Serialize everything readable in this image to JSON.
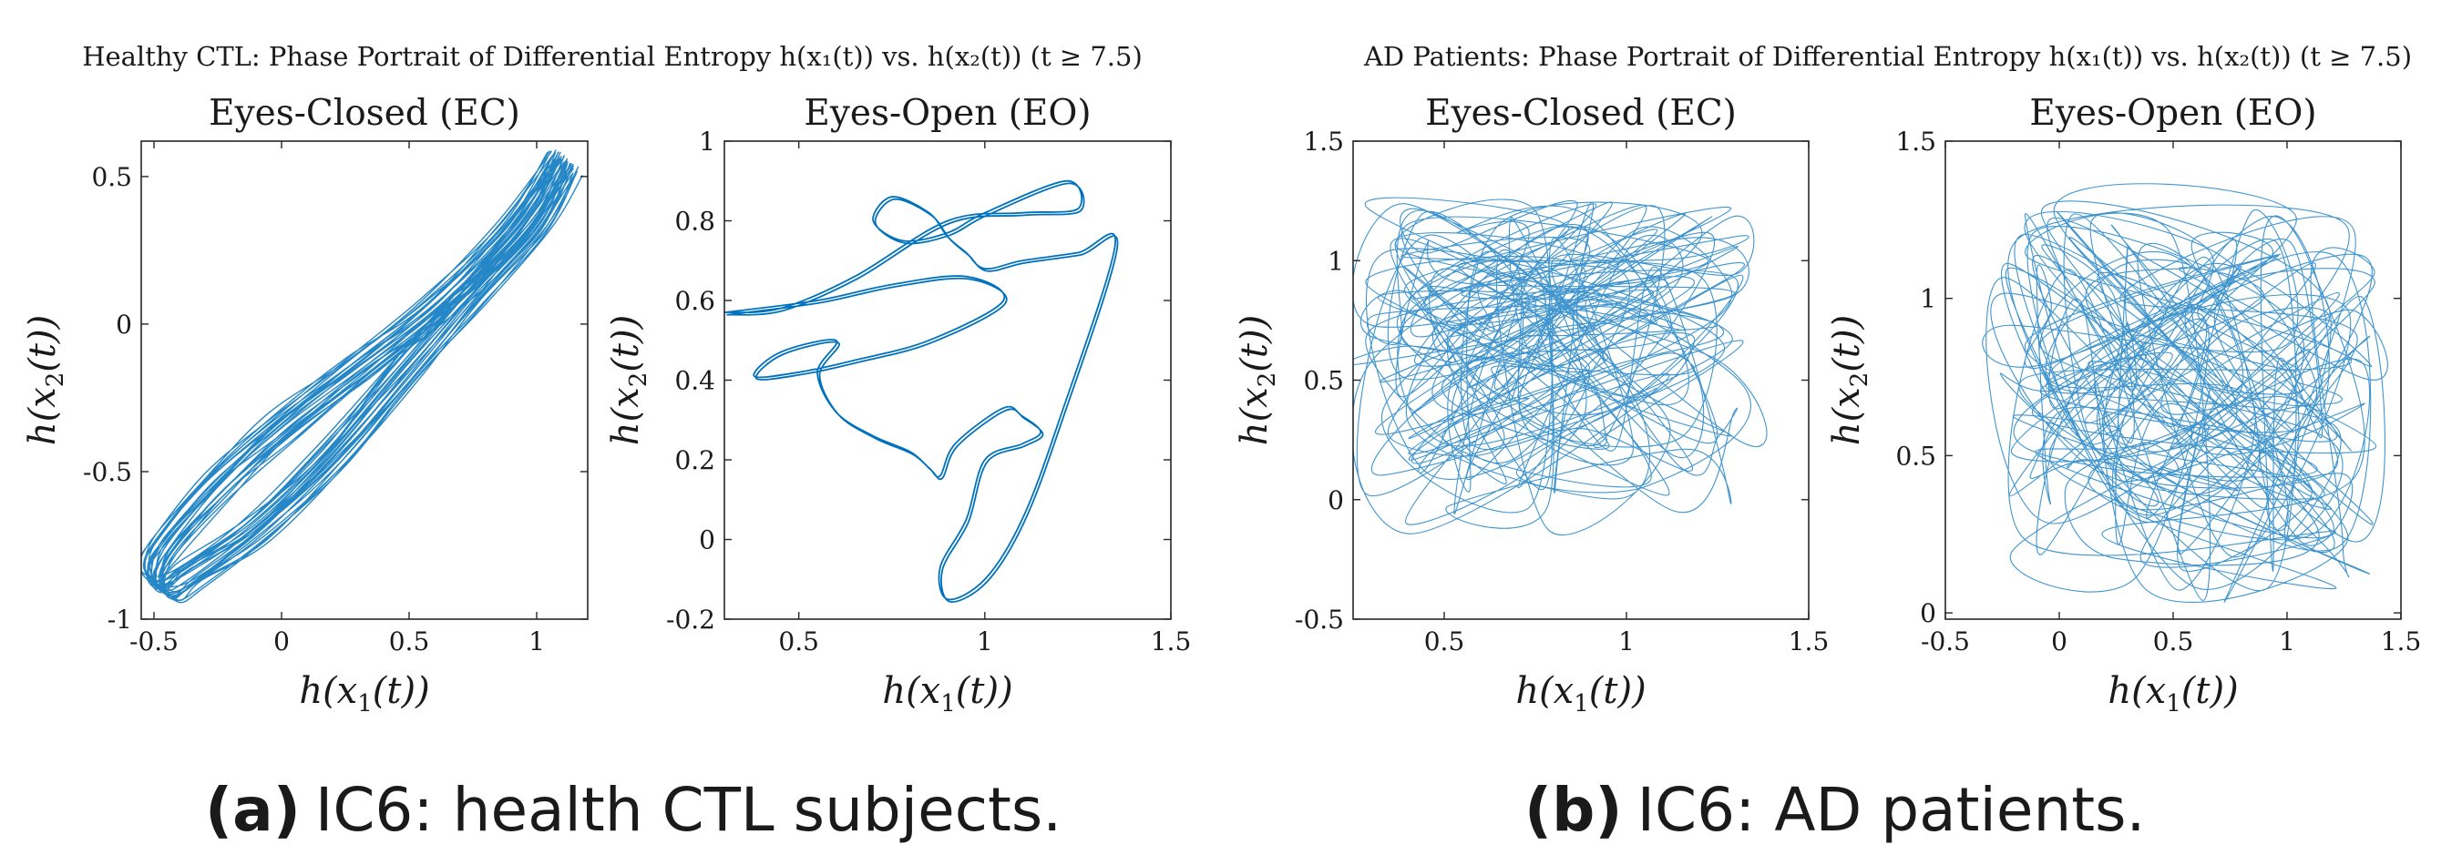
{
  "figure": {
    "suptitle_left": "Healthy CTL: Phase Portrait of Differential Entropy h(x₁(t)) vs. h(x₂(t)) (t ≥ 7.5)",
    "suptitle_right": "AD Patients: Phase Portrait of Differential Entropy h(x₁(t)) vs. h(x₂(t)) (t ≥ 7.5)",
    "caption_a_letter": "(a)",
    "caption_a_text": "IC6: health CTL subjects.",
    "caption_b_letter": "(b)",
    "caption_b_text": "IC6: AD patients.",
    "line_color": "#0072BD"
  },
  "chart_data": [
    {
      "type": "line",
      "group": "Healthy CTL",
      "title": "Eyes-Closed (EC)",
      "xlabel": "h(x₁(t))",
      "ylabel": "h(x₂(t))",
      "xlim": [
        -0.55,
        1.2
      ],
      "ylim": [
        -1.0,
        0.62
      ],
      "xticks": [
        -0.5,
        0,
        0.5,
        1
      ],
      "xtick_labels": [
        "-0.5",
        "0",
        "0.5",
        "1"
      ],
      "yticks": [
        -1,
        -0.5,
        0,
        0.5
      ],
      "ytick_labels": [
        "-1",
        "-0.5",
        "0",
        "0.5"
      ],
      "pattern": "ellipse",
      "series": [
        {
          "name": "phase trajectory",
          "x": [
            1.1,
            0.9,
            0.6,
            0.3,
            0.0,
            -0.25,
            -0.45,
            -0.5,
            -0.45,
            -0.35,
            -0.1,
            0.2,
            0.5,
            0.75,
            1.0,
            1.12
          ],
          "y": [
            0.55,
            0.3,
            0.05,
            -0.15,
            -0.35,
            -0.55,
            -0.75,
            -0.85,
            -0.9,
            -0.85,
            -0.7,
            -0.45,
            -0.15,
            0.1,
            0.35,
            0.55
          ]
        }
      ]
    },
    {
      "type": "line",
      "group": "Healthy CTL",
      "title": "Eyes-Open (EO)",
      "xlabel": "h(x₁(t))",
      "ylabel": "h(x₂(t))",
      "xlim": [
        0.3,
        1.5
      ],
      "ylim": [
        -0.2,
        1.0
      ],
      "xticks": [
        0.5,
        1,
        1.5
      ],
      "xtick_labels": [
        "0.5",
        "1",
        "1.5"
      ],
      "yticks": [
        -0.2,
        0,
        0.2,
        0.4,
        0.6,
        0.8,
        1
      ],
      "ytick_labels": [
        "-0.2",
        "0",
        "0.2",
        "0.4",
        "0.6",
        "0.8",
        "1"
      ],
      "pattern": "path",
      "series": [
        {
          "name": "phase trajectory",
          "x": [
            0.3,
            0.55,
            0.75,
            0.95,
            1.05,
            0.85,
            0.65,
            0.5,
            0.38,
            0.45,
            0.6,
            0.55,
            0.6,
            0.7,
            0.8,
            0.85,
            0.88,
            0.92,
            1.05,
            1.1,
            1.15,
            1.1,
            1.0,
            0.95,
            0.88,
            0.9,
            1.0,
            1.1,
            1.2,
            1.35,
            1.25,
            1.1,
            1.0,
            0.95,
            0.9,
            0.85,
            0.75,
            0.7,
            0.78,
            0.9,
            1.0,
            1.22,
            1.25,
            1.1,
            0.9,
            0.65,
            0.45,
            0.3
          ],
          "y": [
            0.57,
            0.6,
            0.64,
            0.66,
            0.6,
            0.5,
            0.45,
            0.42,
            0.41,
            0.47,
            0.5,
            0.42,
            0.32,
            0.26,
            0.22,
            0.18,
            0.16,
            0.24,
            0.33,
            0.31,
            0.27,
            0.24,
            0.2,
            0.05,
            -0.07,
            -0.15,
            -0.1,
            0.05,
            0.3,
            0.74,
            0.72,
            0.7,
            0.68,
            0.72,
            0.76,
            0.82,
            0.86,
            0.8,
            0.75,
            0.77,
            0.82,
            0.9,
            0.83,
            0.82,
            0.8,
            0.66,
            0.58,
            0.57
          ]
        }
      ]
    },
    {
      "type": "line",
      "group": "AD Patients",
      "title": "Eyes-Closed (EC)",
      "xlabel": "h(x₁(t))",
      "ylabel": "h(x₂(t))",
      "xlim": [
        0.25,
        1.5
      ],
      "ylim": [
        -0.5,
        1.5
      ],
      "xticks": [
        0.5,
        1,
        1.5
      ],
      "xtick_labels": [
        "0.5",
        "1",
        "1.5"
      ],
      "yticks": [
        -0.5,
        0,
        0.5,
        1,
        1.5
      ],
      "ytick_labels": [
        "-0.5",
        "0",
        "0.5",
        "1",
        "1.5"
      ],
      "pattern": "scribble",
      "series": [
        {
          "name": "phase trajectory",
          "x_range": [
            0.28,
            1.32
          ],
          "y_range": [
            -0.15,
            1.25
          ]
        }
      ]
    },
    {
      "type": "line",
      "group": "AD Patients",
      "title": "Eyes-Open (EO)",
      "xlabel": "h(x₁(t))",
      "ylabel": "h(x₂(t))",
      "xlim": [
        -0.5,
        1.5
      ],
      "ylim": [
        -0.02,
        1.5
      ],
      "xticks": [
        -0.5,
        0,
        0.5,
        1,
        1.5
      ],
      "xtick_labels": [
        "-0.5",
        "0",
        "0.5",
        "1",
        "1.5"
      ],
      "yticks": [
        0,
        0.5,
        1,
        1.5
      ],
      "ytick_labels": [
        "0",
        "0.5",
        "1",
        "1.5"
      ],
      "pattern": "scribble",
      "series": [
        {
          "name": "phase trajectory",
          "x_range": [
            -0.25,
            1.4
          ],
          "y_range": [
            0.03,
            1.28
          ]
        }
      ]
    }
  ]
}
